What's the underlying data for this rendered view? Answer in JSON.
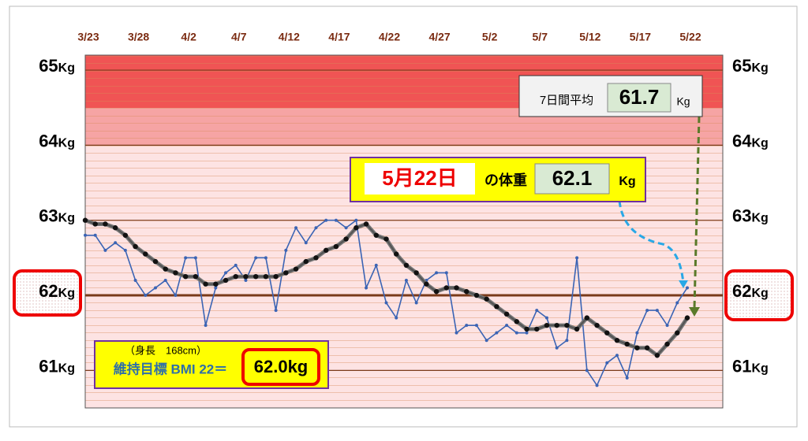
{
  "chart_data": {
    "type": "line",
    "categories": [
      "3/23",
      null,
      null,
      null,
      null,
      "3/28",
      null,
      null,
      null,
      null,
      "4/2",
      null,
      null,
      null,
      null,
      "4/7",
      null,
      null,
      null,
      null,
      "4/12",
      null,
      null,
      null,
      null,
      "4/17",
      null,
      null,
      null,
      null,
      "4/22",
      null,
      null,
      null,
      null,
      "4/27",
      null,
      null,
      null,
      null,
      "5/2",
      null,
      null,
      null,
      null,
      "5/7",
      null,
      null,
      null,
      null,
      "5/12",
      null,
      null,
      null,
      null,
      "5/17",
      null,
      null,
      null,
      null,
      "5/22"
    ],
    "series": [
      {
        "color": "#3b64b4",
        "values": [
          62.8,
          62.8,
          62.6,
          62.7,
          62.6,
          62.2,
          62.0,
          62.1,
          62.2,
          62.0,
          62.5,
          62.5,
          61.6,
          62.1,
          62.3,
          62.4,
          62.2,
          62.5,
          62.5,
          61.8,
          62.6,
          62.9,
          62.7,
          62.9,
          63.0,
          63.0,
          62.9,
          63.0,
          62.1,
          62.4,
          61.9,
          61.7,
          62.2,
          61.9,
          62.2,
          62.3,
          62.3,
          61.5,
          61.6,
          61.6,
          61.4,
          61.5,
          61.6,
          61.5,
          61.5,
          61.8,
          61.7,
          61.3,
          61.4,
          62.5,
          61.0,
          60.8,
          61.1,
          61.2,
          60.9,
          61.5,
          61.8,
          61.8,
          61.6,
          61.9,
          62.1
        ]
      },
      {
        "color": "#111111",
        "values": [
          63.0,
          62.95,
          62.95,
          62.9,
          62.8,
          62.65,
          62.55,
          62.45,
          62.35,
          62.3,
          62.25,
          62.25,
          62.15,
          62.15,
          62.2,
          62.25,
          62.25,
          62.25,
          62.25,
          62.25,
          62.3,
          62.35,
          62.45,
          62.5,
          62.6,
          62.65,
          62.75,
          62.9,
          62.95,
          62.8,
          62.75,
          62.55,
          62.4,
          62.3,
          62.15,
          62.05,
          62.1,
          62.1,
          62.05,
          62.0,
          61.95,
          61.85,
          61.75,
          61.65,
          61.55,
          61.55,
          61.6,
          61.6,
          61.6,
          61.55,
          61.7,
          61.6,
          61.5,
          61.4,
          61.35,
          61.3,
          61.3,
          61.2,
          61.35,
          61.5,
          61.7
        ]
      }
    ],
    "ylim": [
      60.5,
      65.2
    ],
    "yticks": [
      61,
      62,
      63,
      64,
      65
    ],
    "y_unit": "Kg",
    "annotations": {
      "avg_label": "7日間平均",
      "avg_value": "61.7",
      "avg_unit": "Kg",
      "date_label": "5月22日",
      "weight_label": "の体重",
      "weight_value": "62.1",
      "weight_unit": "Kg",
      "height": "（身長　168cm）",
      "bmi_label": "維持目標 BMI 22＝",
      "bmi_value": "62.0kg"
    }
  }
}
